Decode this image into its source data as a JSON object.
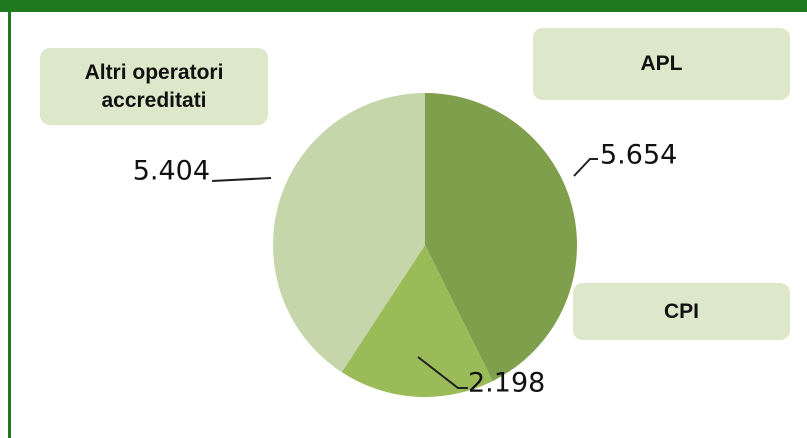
{
  "chart_data": {
    "type": "pie",
    "categories": [
      "APL",
      "CPI",
      "Altri operatori accreditati"
    ],
    "values": [
      5654,
      2198,
      5404
    ],
    "value_labels": [
      "5.654",
      "2.198",
      "5.404"
    ],
    "colors": [
      "#7f9f4d",
      "#9bbb59",
      "#c5d6aa"
    ]
  }
}
